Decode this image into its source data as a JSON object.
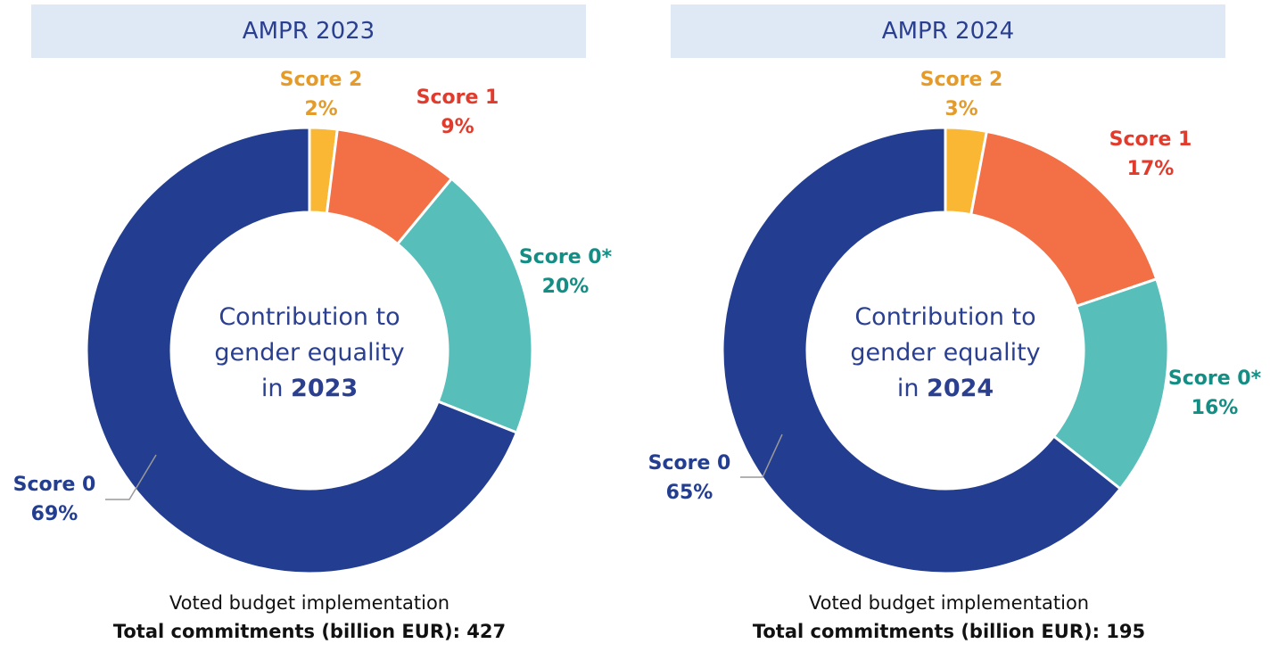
{
  "chart_data": [
    {
      "type": "pie",
      "subtype": "donut",
      "title": "AMPR 2023",
      "center_text": {
        "line1": "Contribution to",
        "line2": "gender equality",
        "line3_prefix": "in",
        "year": "2023"
      },
      "slices": [
        {
          "label": "Score 2",
          "value": 2,
          "value_label": "2%",
          "color": "#f9b733",
          "label_color": "#e59b2a"
        },
        {
          "label": "Score 1",
          "value": 9,
          "value_label": "9%",
          "color": "#f36f45",
          "label_color": "#e03b2c"
        },
        {
          "label": "Score 0*",
          "value": 20,
          "value_label": "20%",
          "color": "#57beb9",
          "label_color": "#148e84"
        },
        {
          "label": "Score 0",
          "value": 69,
          "value_label": "69%",
          "color": "#233e91",
          "label_color": "#233e91"
        }
      ],
      "footer": {
        "line1": "Voted budget implementation",
        "line2": "Total commitments (billion EUR): 427"
      }
    },
    {
      "type": "pie",
      "subtype": "donut",
      "title": "AMPR 2024",
      "center_text": {
        "line1": "Contribution to",
        "line2": "gender equality",
        "line3_prefix": "in",
        "year": "2024"
      },
      "slices": [
        {
          "label": "Score 2",
          "value": 3,
          "value_label": "3%",
          "color": "#f9b733",
          "label_color": "#e59b2a"
        },
        {
          "label": "Score 1",
          "value": 17,
          "value_label": "17%",
          "color": "#f36f45",
          "label_color": "#e03b2c"
        },
        {
          "label": "Score 0*",
          "value": 16,
          "value_label": "16%",
          "color": "#57beb9",
          "label_color": "#148e84"
        },
        {
          "label": "Score 0",
          "value": 65,
          "value_label": "65%",
          "color": "#233e91",
          "label_color": "#233e91"
        }
      ],
      "footer": {
        "line1": "Voted budget implementation",
        "line2": "Total commitments (billion EUR): 195"
      }
    }
  ]
}
